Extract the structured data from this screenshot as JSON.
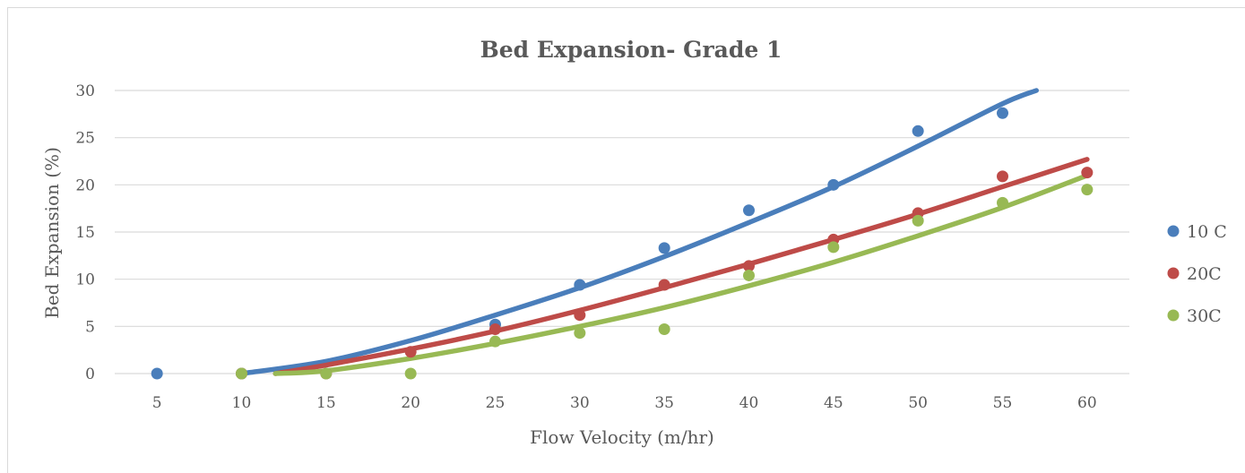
{
  "chart_data": {
    "type": "scatter",
    "title": "Bed Expansion- Grade 1",
    "xlabel": "Flow Velocity (m/hr)",
    "ylabel": "Bed Expansion (%)",
    "xlim": [
      2.5,
      62.5
    ],
    "ylim": [
      0,
      30
    ],
    "x_ticks": [
      "5",
      "10",
      "15",
      "20",
      "25",
      "30",
      "35",
      "40",
      "45",
      "50",
      "55",
      "60"
    ],
    "y_ticks": [
      "0",
      "5",
      "10",
      "15",
      "20",
      "25",
      "30"
    ],
    "grid": true,
    "legend_position": "right",
    "trendlines": "polynomial",
    "series": [
      {
        "name": "10 C",
        "color": "#4a7ebb",
        "points": [
          [
            5,
            0
          ],
          [
            10,
            0
          ],
          [
            25,
            5.2
          ],
          [
            30,
            9.4
          ],
          [
            35,
            13.3
          ],
          [
            40,
            17.3
          ],
          [
            45,
            20
          ],
          [
            50,
            25.7
          ],
          [
            55,
            27.6
          ]
        ],
        "trend": [
          [
            10,
            0
          ],
          [
            15,
            1.3
          ],
          [
            20,
            3.5
          ],
          [
            25,
            6.2
          ],
          [
            30,
            9.1
          ],
          [
            35,
            12.4
          ],
          [
            40,
            16
          ],
          [
            45,
            19.8
          ],
          [
            50,
            24.1
          ],
          [
            55,
            28.6
          ],
          [
            57,
            30
          ]
        ]
      },
      {
        "name": "20C",
        "color": "#be4b48",
        "points": [
          [
            10,
            0
          ],
          [
            15,
            0
          ],
          [
            20,
            2.3
          ],
          [
            25,
            4.7
          ],
          [
            30,
            6.2
          ],
          [
            35,
            9.4
          ],
          [
            40,
            11.4
          ],
          [
            45,
            14.2
          ],
          [
            50,
            17
          ],
          [
            55,
            20.9
          ],
          [
            60,
            21.3
          ]
        ],
        "trend": [
          [
            12,
            0
          ],
          [
            15,
            0.9
          ],
          [
            20,
            2.6
          ],
          [
            25,
            4.5
          ],
          [
            30,
            6.7
          ],
          [
            35,
            9.1
          ],
          [
            40,
            11.6
          ],
          [
            45,
            14.2
          ],
          [
            50,
            16.9
          ],
          [
            55,
            19.8
          ],
          [
            60,
            22.7
          ]
        ]
      },
      {
        "name": "30C",
        "color": "#98b954",
        "points": [
          [
            10,
            0
          ],
          [
            15,
            0
          ],
          [
            20,
            0
          ],
          [
            25,
            3.4
          ],
          [
            30,
            4.3
          ],
          [
            35,
            4.7
          ],
          [
            40,
            10.4
          ],
          [
            45,
            13.4
          ],
          [
            50,
            16.2
          ],
          [
            55,
            18.1
          ],
          [
            60,
            19.5
          ]
        ],
        "trend": [
          [
            12,
            0
          ],
          [
            15,
            0.3
          ],
          [
            20,
            1.6
          ],
          [
            25,
            3.2
          ],
          [
            30,
            5
          ],
          [
            35,
            7
          ],
          [
            40,
            9.3
          ],
          [
            45,
            11.8
          ],
          [
            50,
            14.6
          ],
          [
            55,
            17.6
          ],
          [
            60,
            21
          ]
        ]
      }
    ]
  }
}
